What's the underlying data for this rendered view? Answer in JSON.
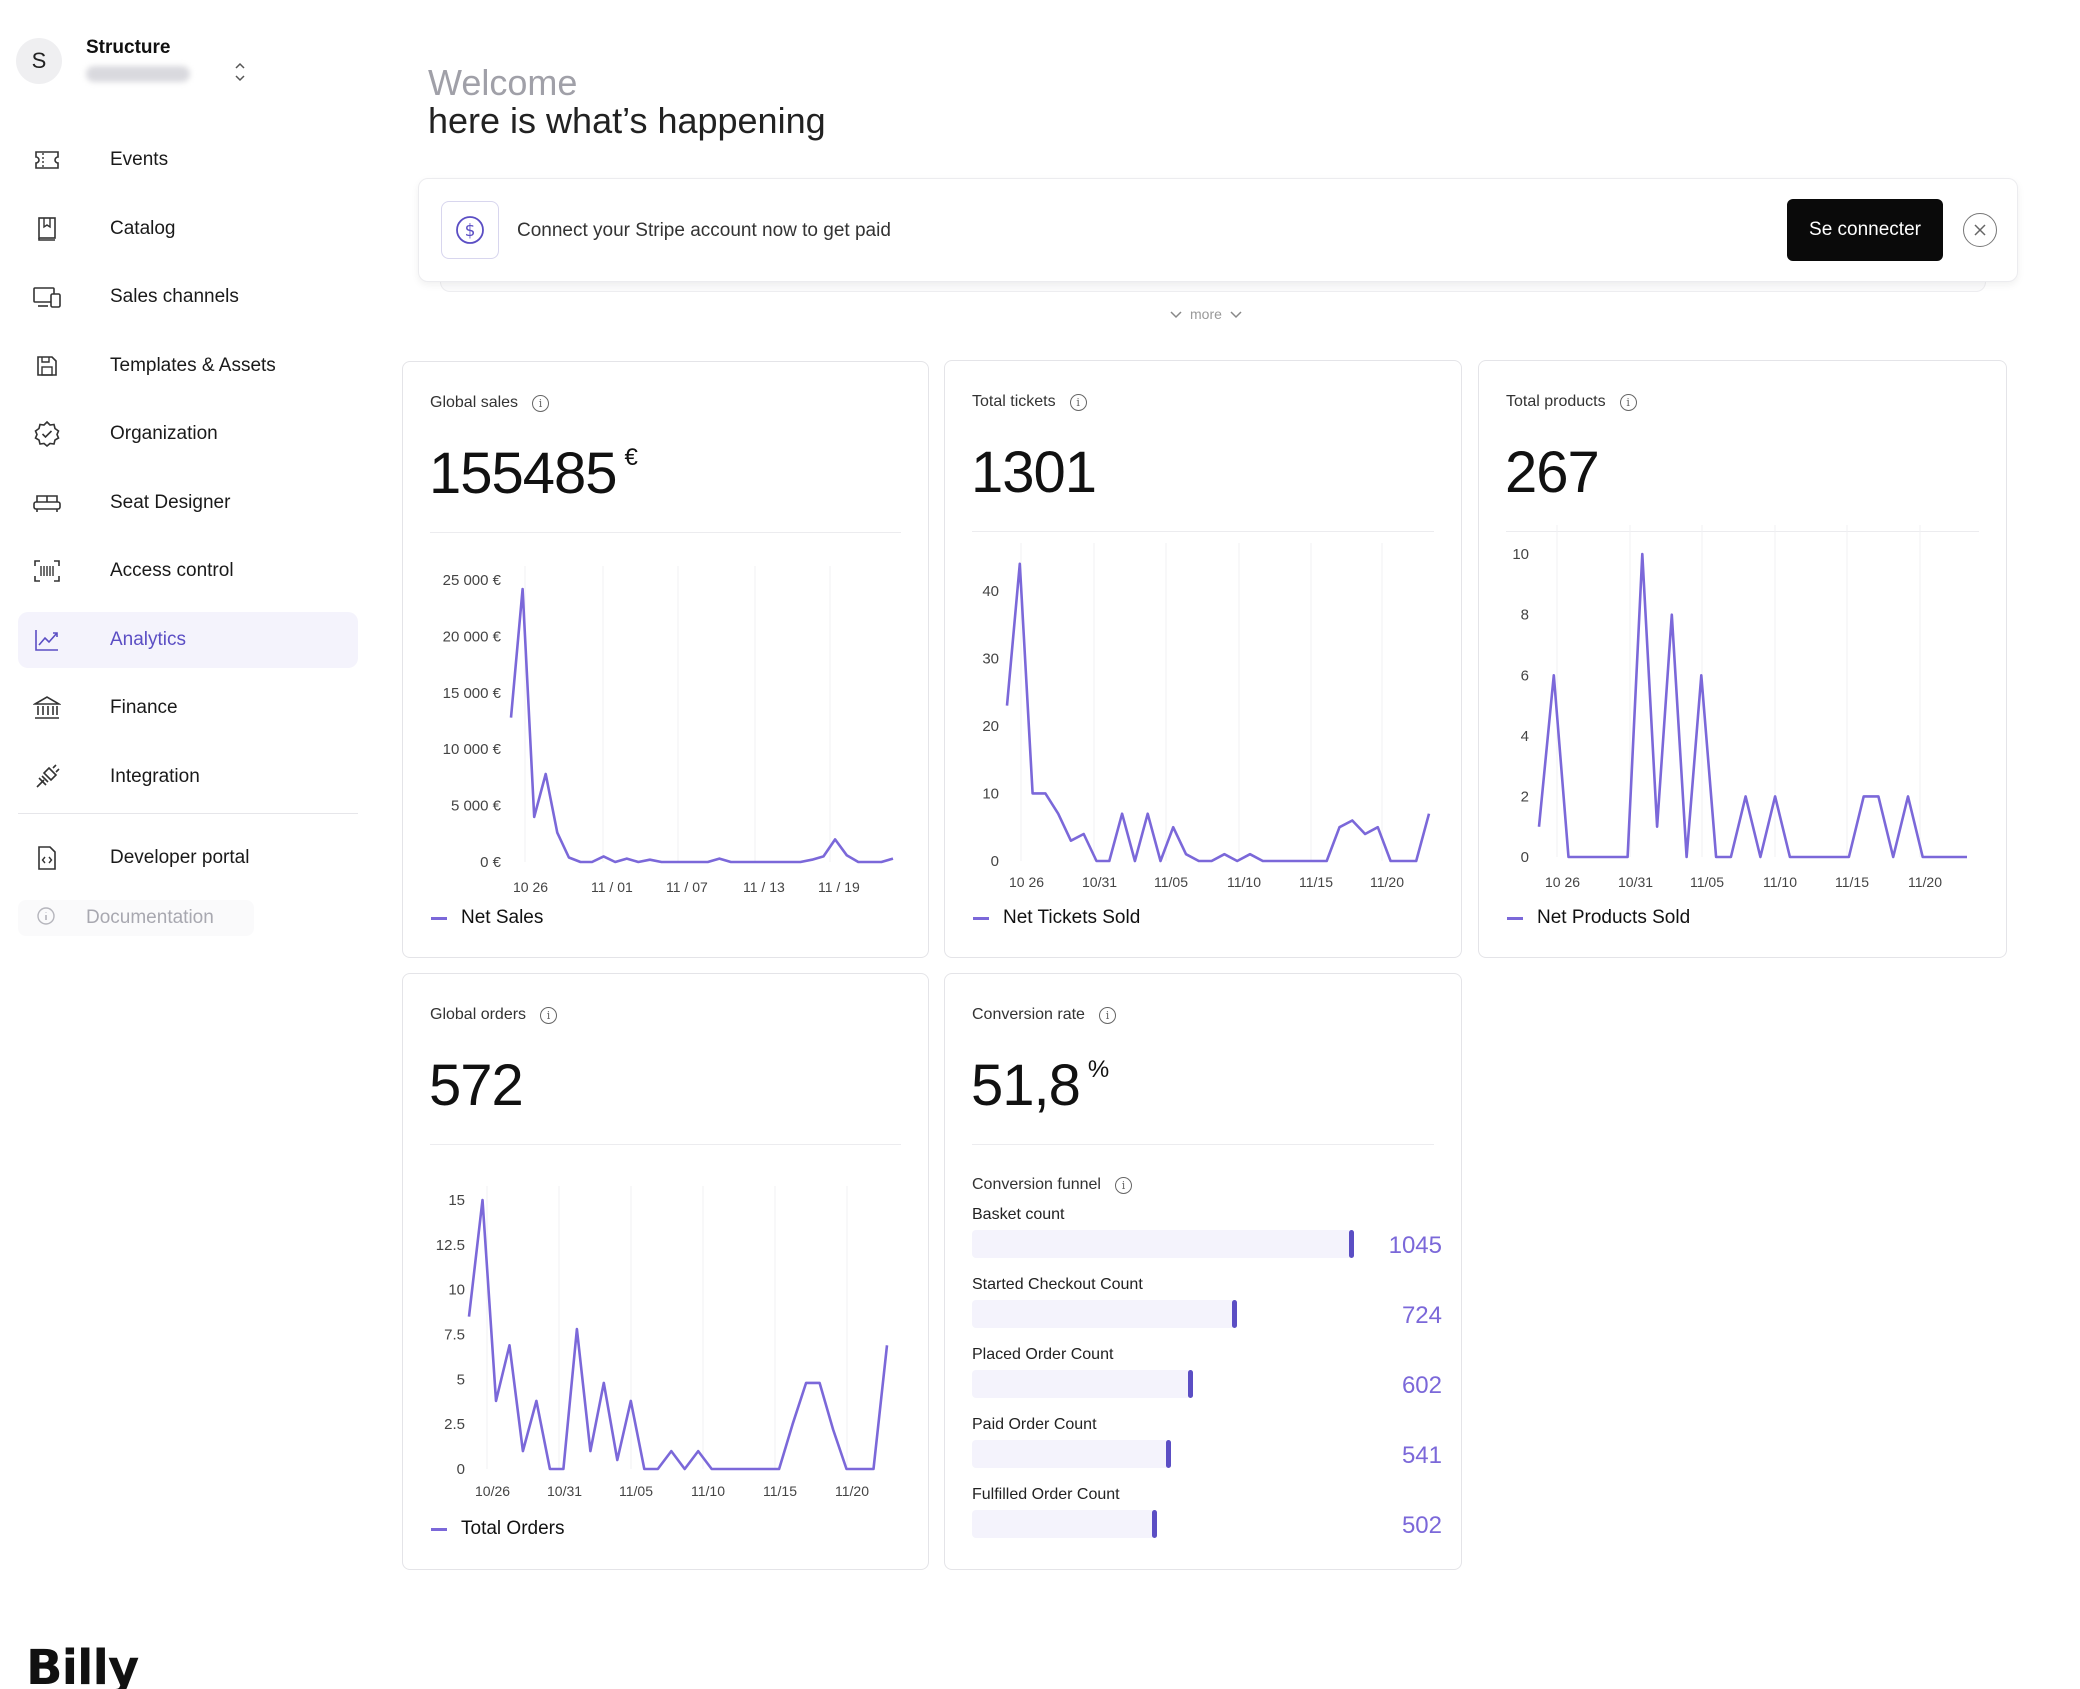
{
  "org": {
    "initial": "S",
    "name": "Structure"
  },
  "nav": [
    {
      "label": "Events",
      "icon": "ticket-icon"
    },
    {
      "label": "Catalog",
      "icon": "book-icon"
    },
    {
      "label": "Sales channels",
      "icon": "devices-icon"
    },
    {
      "label": "Templates & Assets",
      "icon": "save-icon"
    },
    {
      "label": "Organization",
      "icon": "verified-badge-icon"
    },
    {
      "label": "Seat Designer",
      "icon": "sofa-icon"
    },
    {
      "label": "Access control",
      "icon": "barcode-scan-icon"
    },
    {
      "label": "Analytics",
      "icon": "chart-line-icon",
      "active": true
    },
    {
      "label": "Finance",
      "icon": "bank-icon"
    },
    {
      "label": "Integration",
      "icon": "plug-icon"
    }
  ],
  "nav_secondary": {
    "developer": "Developer portal",
    "documentation": "Documentation"
  },
  "brand": "Billy",
  "header": {
    "welcome": "Welcome",
    "headline": "here is what’s happening"
  },
  "banner": {
    "text": "Connect your Stripe account now to get paid",
    "button": "Se connecter",
    "more": "more"
  },
  "colors": {
    "accent": "#7b68d9",
    "accent_dark": "#5b4ec4",
    "track": "#f4f3fc"
  },
  "cards": {
    "global_sales": {
      "title": "Global sales",
      "value": "155485",
      "unit": "€",
      "legend": "Net Sales"
    },
    "total_tickets": {
      "title": "Total tickets",
      "value": "1301",
      "legend": "Net Tickets Sold"
    },
    "total_products": {
      "title": "Total products",
      "value": "267",
      "legend": "Net Products Sold"
    },
    "global_orders": {
      "title": "Global orders",
      "value": "572",
      "legend": "Total Orders"
    },
    "conversion": {
      "title": "Conversion rate",
      "value": "51,8",
      "unit": "%",
      "funnel_title": "Conversion funnel"
    }
  },
  "funnel": [
    {
      "label": "Basket count",
      "value": 1045
    },
    {
      "label": "Started Checkout Count",
      "value": 724
    },
    {
      "label": "Placed Order Count",
      "value": 602
    },
    {
      "label": "Paid Order Count",
      "value": 541
    },
    {
      "label": "Fulfilled Order Count",
      "value": 502
    }
  ],
  "chart_data": [
    {
      "type": "line",
      "id": "sales",
      "y_ticks": [
        0,
        5000,
        10000,
        15000,
        20000,
        25000
      ],
      "y_tick_labels": [
        "0 €",
        "5 000 €",
        "10 000 €",
        "15 000 €",
        "20 000 €",
        "25 000 €"
      ],
      "ylim": [
        0,
        25000
      ],
      "x_tick_labels": [
        "10 26",
        "11 / 01",
        "11 / 07",
        "11 / 13",
        "11 / 19"
      ],
      "series": [
        {
          "name": "Net Sales",
          "values": [
            12800,
            24200,
            4000,
            7800,
            2600,
            400,
            0,
            0,
            500,
            0,
            300,
            0,
            200,
            0,
            0,
            0,
            0,
            0,
            300,
            0,
            0,
            0,
            0,
            0,
            0,
            0,
            200,
            500,
            2000,
            600,
            0,
            0,
            0,
            300
          ]
        }
      ],
      "grid": true
    },
    {
      "type": "line",
      "id": "tickets",
      "y_ticks": [
        0,
        10,
        20,
        30,
        40
      ],
      "ylim": [
        0,
        45
      ],
      "x_tick_labels": [
        "10 26",
        "10/31",
        "11/05",
        "11/10",
        "11/15",
        "11/20"
      ],
      "series": [
        {
          "name": "Net Tickets Sold",
          "values": [
            23,
            44,
            10,
            10,
            7,
            3,
            4,
            0,
            0,
            7,
            0,
            7,
            0,
            5,
            1,
            0,
            0,
            1,
            0,
            1,
            0,
            0,
            0,
            0,
            0,
            0,
            5,
            6,
            4,
            5,
            0,
            0,
            0,
            7
          ]
        }
      ],
      "grid": true
    },
    {
      "type": "line",
      "id": "products",
      "y_ticks": [
        0,
        2,
        4,
        6,
        8,
        10
      ],
      "ylim": [
        0,
        10.5
      ],
      "x_tick_labels": [
        "10 26",
        "10/31",
        "11/05",
        "11/10",
        "11/15",
        "11/20"
      ],
      "series": [
        {
          "name": "Net Products Sold",
          "values": [
            1,
            6,
            0,
            0,
            0,
            0,
            0,
            10,
            1,
            8,
            0,
            6,
            0,
            0,
            2,
            0,
            2,
            0,
            0,
            0,
            0,
            0,
            2,
            2,
            0,
            2,
            0,
            0,
            0,
            0
          ]
        }
      ],
      "grid": true
    },
    {
      "type": "line",
      "id": "orders",
      "y_ticks": [
        0,
        2.5,
        5,
        7.5,
        10,
        12.5,
        15
      ],
      "ylim": [
        0,
        15
      ],
      "x_tick_labels": [
        "10/26",
        "10/31",
        "11/05",
        "11/10",
        "11/15",
        "11/20"
      ],
      "series": [
        {
          "name": "Total Orders",
          "values": [
            8.5,
            15,
            3.8,
            6.9,
            1,
            3.8,
            0,
            0,
            7.8,
            1,
            4.8,
            0.5,
            3.8,
            0,
            0,
            1,
            0,
            1,
            0,
            0,
            0,
            0,
            0,
            0,
            2.5,
            4.8,
            4.8,
            2.2,
            0,
            0,
            0,
            6.9
          ]
        }
      ],
      "grid": true
    }
  ]
}
